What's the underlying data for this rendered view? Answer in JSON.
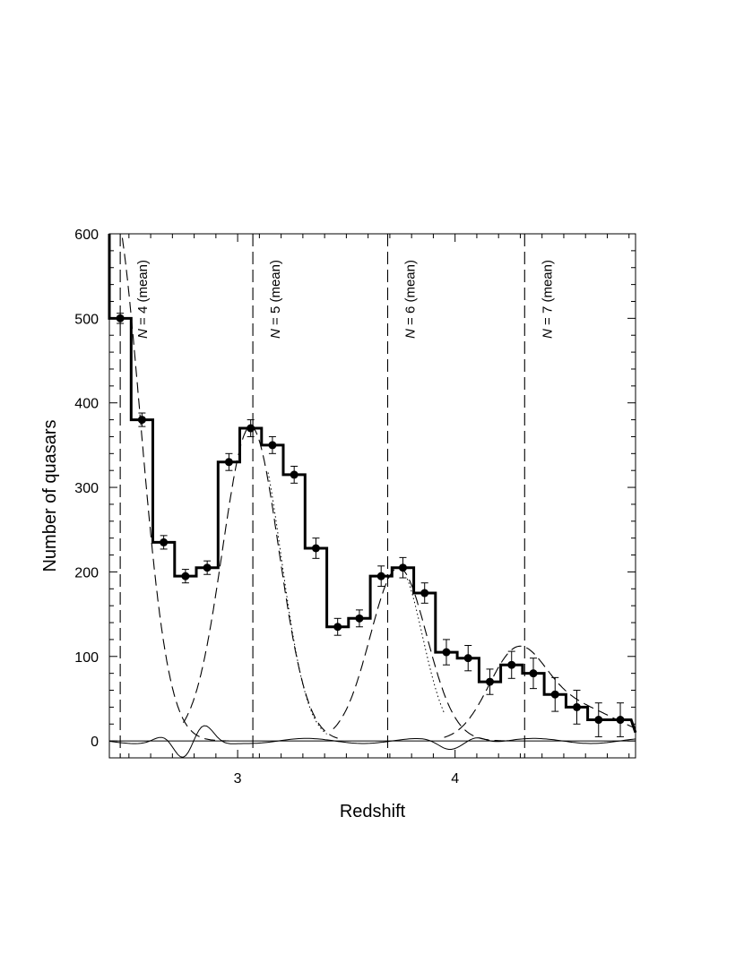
{
  "chart_data": {
    "type": "line",
    "title": "",
    "xlabel": "Redshift",
    "ylabel": "Number of quasars",
    "xlim": [
      2.41,
      4.83
    ],
    "ylim": [
      -20,
      600
    ],
    "xticks": [
      3,
      4
    ],
    "xtick_labels": [
      "3",
      "4"
    ],
    "yticks": [
      0,
      100,
      200,
      300,
      400,
      500,
      600
    ],
    "ytick_labels": [
      "0",
      "100",
      "200",
      "300",
      "400",
      "500",
      "600"
    ],
    "grid": false,
    "legend": "none",
    "annotations": [
      {
        "x": 2.46,
        "prefix": "N",
        "label": " = 4 (mean)"
      },
      {
        "x": 3.07,
        "prefix": "N",
        "label": " = 5 (mean)"
      },
      {
        "x": 3.69,
        "prefix": "N",
        "label": " = 6 (mean)"
      },
      {
        "x": 4.32,
        "prefix": "N",
        "label": " = 7 (mean)"
      }
    ],
    "histogram": {
      "bin_width": 0.1,
      "bin_starts": [
        2.41,
        2.51,
        2.61,
        2.71,
        2.81,
        2.91,
        3.01,
        3.11,
        3.21,
        3.31,
        3.41,
        3.51,
        3.61,
        3.71,
        3.81,
        3.91,
        4.01,
        4.11,
        4.21,
        4.31,
        4.41,
        4.51,
        4.61,
        4.71
      ],
      "values": [
        500,
        380,
        235,
        195,
        205,
        330,
        370,
        350,
        315,
        228,
        135,
        145,
        195,
        205,
        175,
        105,
        98,
        70,
        90,
        80,
        55,
        40,
        25,
        25
      ]
    },
    "points": {
      "x": [
        2.46,
        2.56,
        2.66,
        2.76,
        2.86,
        2.96,
        3.06,
        3.16,
        3.26,
        3.36,
        3.46,
        3.56,
        3.66,
        3.76,
        3.86,
        3.96,
        4.06,
        4.16,
        4.26,
        4.36,
        4.46,
        4.56,
        4.66,
        4.76
      ],
      "y": [
        500,
        380,
        235,
        195,
        205,
        330,
        370,
        350,
        315,
        228,
        135,
        145,
        195,
        205,
        175,
        105,
        98,
        70,
        90,
        80,
        55,
        40,
        25,
        25
      ],
      "err": [
        6,
        8,
        8,
        8,
        8,
        10,
        10,
        10,
        10,
        12,
        10,
        10,
        12,
        12,
        12,
        15,
        15,
        15,
        16,
        18,
        20,
        20,
        20,
        20
      ]
    }
  }
}
